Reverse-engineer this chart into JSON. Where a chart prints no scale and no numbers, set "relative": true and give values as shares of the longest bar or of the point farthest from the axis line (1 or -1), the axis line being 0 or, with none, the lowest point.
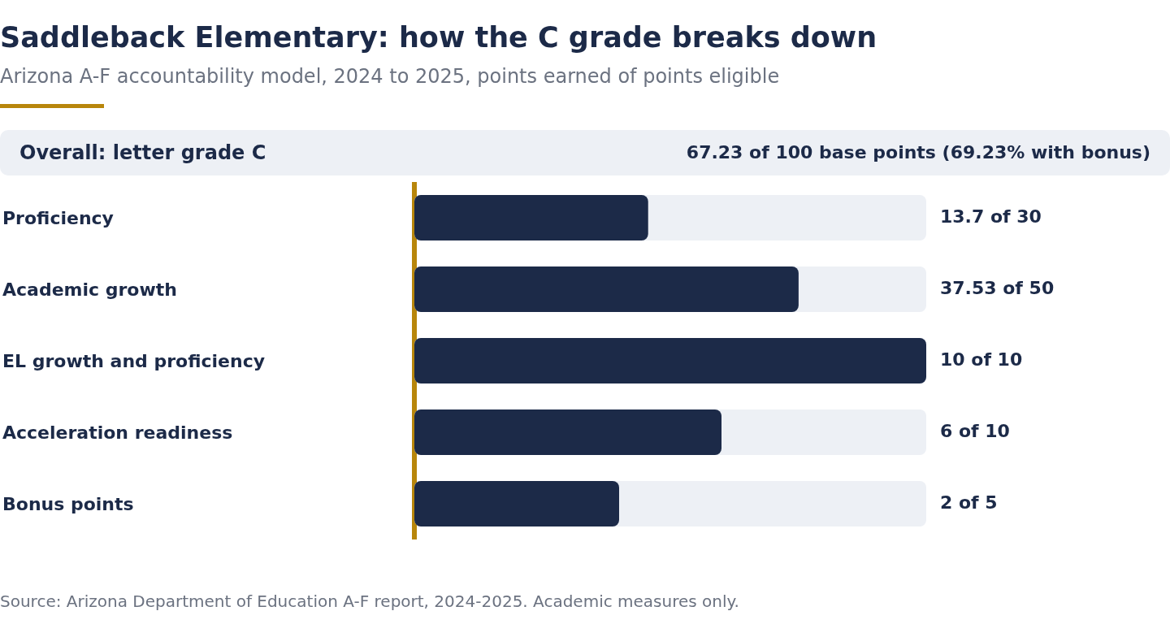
{
  "chart_data": {
    "type": "bar",
    "orientation": "horizontal",
    "relative": true,
    "title": "Saddleback Elementary: how the C grade breaks down",
    "subtitle": "Arizona A-F accountability model, 2024 to 2025, points earned of points eligible",
    "categories": [
      "Proficiency",
      "Academic growth",
      "EL growth and proficiency",
      "Acceleration readiness",
      "Bonus points"
    ],
    "values": [
      0.4567,
      0.7506,
      1,
      0.6,
      0.4
    ],
    "color": "#1c2a48",
    "annotations": [
      "Overall: letter grade C",
      "67.23 of 100 base points (69.23% with bonus)",
      "Source: Arizona Department of Education A-F report, 2024-2025. Academic measures only.",
      "13.7 of 30",
      "37.53 of 50",
      "10 of 10",
      "6 of 10",
      "2 of 5"
    ]
  }
}
